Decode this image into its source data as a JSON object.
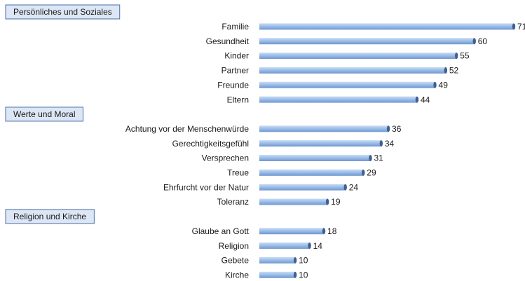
{
  "chart_data": {
    "type": "bar",
    "color": "#8fb4e3",
    "xlim": [
      0,
      71
    ],
    "groups": [
      {
        "name": "Persönliches und Soziales",
        "categories": [
          "Familie",
          "Gesundheit",
          "Kinder",
          "Partner",
          "Freunde",
          "Eltern"
        ],
        "values": [
          71,
          60,
          55,
          52,
          49,
          44
        ]
      },
      {
        "name": "Werte und Moral",
        "categories": [
          "Achtung vor der Menschenwürde",
          "Gerechtigkeitsgefühl",
          "Versprechen",
          "Treue",
          "Ehrfurcht vor der Natur",
          "Toleranz"
        ],
        "values": [
          36,
          34,
          31,
          29,
          24,
          19
        ]
      },
      {
        "name": "Religion und Kirche",
        "categories": [
          "Glaube an Gott",
          "Religion",
          "Gebete",
          "Kirche"
        ],
        "values": [
          18,
          14,
          10,
          10
        ]
      }
    ]
  }
}
